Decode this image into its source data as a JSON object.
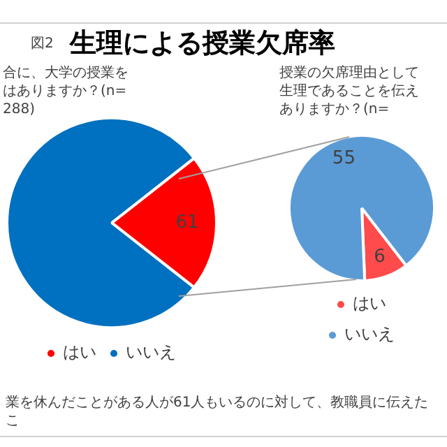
{
  "chart_data": [
    {
      "type": "pie",
      "title": "生理による授業欠席率",
      "subtitle": "合に、大学の授業をはありますか？(n=288)",
      "categories": [
        "はい",
        "いいえ"
      ],
      "values": [
        61,
        227
      ],
      "colors": [
        "#ff0000",
        "#0070c0"
      ],
      "value_labels": [
        "61",
        null
      ],
      "legend": "bottom",
      "annotations": [
        "図2",
        "業を休んだことがある人が61人もいるのに対して、教職員に伝えたこ"
      ]
    },
    {
      "type": "pie",
      "subtitle": "授業の欠席理由として生理であることを伝えありますか？(n=",
      "categories": [
        "はい",
        "いいえ"
      ],
      "values": [
        6,
        55
      ],
      "colors": [
        "#ff4b4b",
        "#5b9bd5"
      ],
      "data_labels": true,
      "legend": "bottom"
    }
  ]
}
